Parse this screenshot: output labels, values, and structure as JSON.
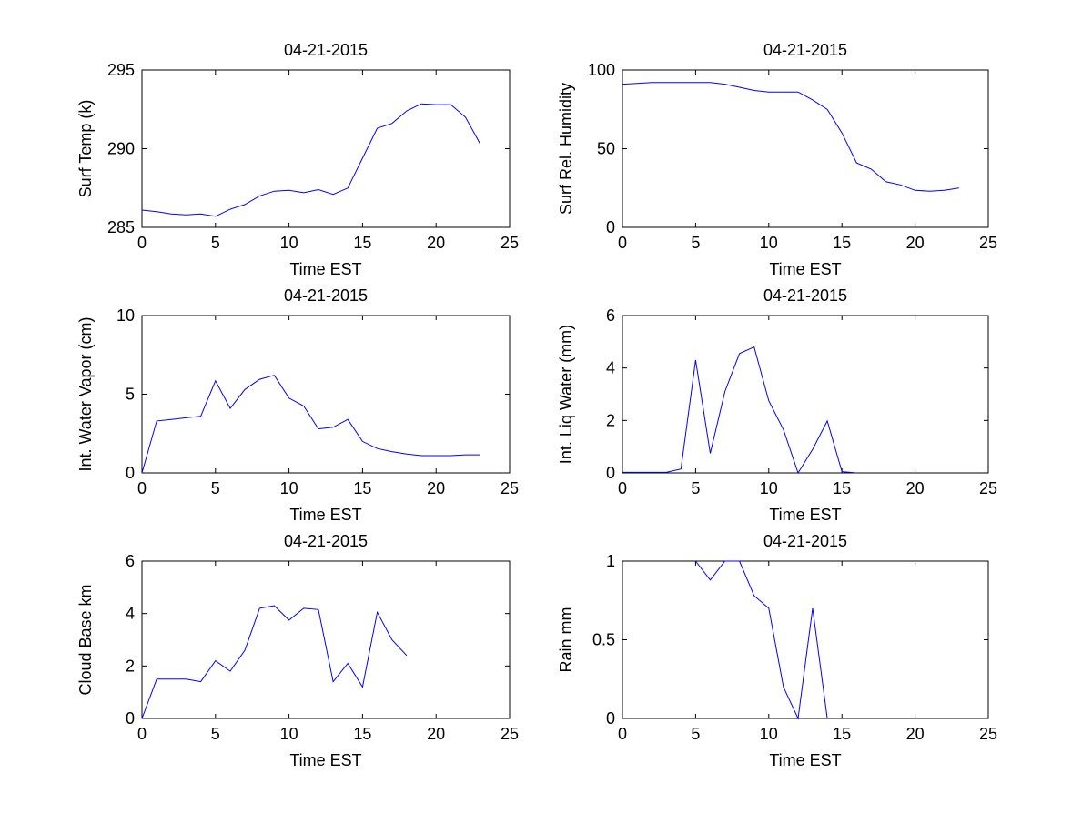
{
  "figure": {
    "line_color": "#0000ff",
    "axis_color": "#000000",
    "background": "#ffffff"
  },
  "chart_data": [
    {
      "type": "line",
      "title": "04-21-2015",
      "xlabel": "Time EST",
      "ylabel": "Surf Temp (k)",
      "xlim": [
        0,
        25
      ],
      "ylim": [
        285,
        295
      ],
      "xticks": [
        0,
        5,
        10,
        15,
        20,
        25
      ],
      "yticks": [
        285,
        290,
        295
      ],
      "grid": false,
      "x": [
        0,
        1,
        2,
        3,
        4,
        5,
        6,
        7,
        8,
        9,
        10,
        11,
        12,
        13,
        14,
        15,
        16,
        17,
        18,
        19,
        20,
        21,
        22,
        23
      ],
      "y": [
        286.1,
        286.0,
        285.85,
        285.8,
        285.85,
        285.7,
        286.15,
        286.45,
        287.0,
        287.3,
        287.35,
        287.2,
        287.4,
        287.1,
        287.5,
        289.4,
        291.3,
        291.6,
        292.4,
        292.85,
        292.8,
        292.8,
        292.0,
        290.3
      ]
    },
    {
      "type": "line",
      "title": "04-21-2015",
      "xlabel": "Time EST",
      "ylabel": "Surf Rel. Humidity",
      "xlim": [
        0,
        25
      ],
      "ylim": [
        0,
        100
      ],
      "xticks": [
        0,
        5,
        10,
        15,
        20,
        25
      ],
      "yticks": [
        0,
        50,
        100
      ],
      "grid": false,
      "x": [
        0,
        1,
        2,
        3,
        4,
        5,
        6,
        7,
        8,
        9,
        10,
        11,
        12,
        13,
        14,
        15,
        16,
        17,
        18,
        19,
        20,
        21,
        22,
        23
      ],
      "y": [
        91,
        91.5,
        92,
        92,
        92,
        92,
        92,
        91,
        89,
        87,
        86,
        86,
        86,
        81,
        75,
        60,
        41,
        37,
        29,
        27,
        23.5,
        23,
        23.5,
        25
      ]
    },
    {
      "type": "line",
      "title": "04-21-2015",
      "xlabel": "Time EST",
      "ylabel": "Int. Water Vapor (cm)",
      "xlim": [
        0,
        25
      ],
      "ylim": [
        0,
        10
      ],
      "xticks": [
        0,
        5,
        10,
        15,
        20,
        25
      ],
      "yticks": [
        0,
        5,
        10
      ],
      "grid": false,
      "x": [
        0,
        1,
        2,
        3,
        4,
        5,
        6,
        7,
        8,
        9,
        10,
        11,
        12,
        13,
        14,
        15,
        16,
        17,
        18,
        19,
        20,
        21,
        22,
        23
      ],
      "y": [
        0,
        3.3,
        3.4,
        3.5,
        3.6,
        5.85,
        4.1,
        5.3,
        5.95,
        6.2,
        4.75,
        4.25,
        2.8,
        2.9,
        3.4,
        2.0,
        1.55,
        1.35,
        1.2,
        1.1,
        1.1,
        1.1,
        1.15,
        1.15
      ]
    },
    {
      "type": "line",
      "title": "04-21-2015",
      "xlabel": "Time EST",
      "ylabel": "Int. Liq Water (mm)",
      "xlim": [
        0,
        25
      ],
      "ylim": [
        0,
        6
      ],
      "xticks": [
        0,
        5,
        10,
        15,
        20,
        25
      ],
      "yticks": [
        0,
        2,
        4,
        6
      ],
      "grid": false,
      "x": [
        0,
        1,
        2,
        3,
        4,
        5,
        6,
        7,
        8,
        9,
        10,
        11,
        12,
        13,
        14,
        15,
        16
      ],
      "y": [
        0.02,
        0.02,
        0.02,
        0.02,
        0.15,
        4.3,
        0.75,
        3.1,
        4.55,
        4.8,
        2.75,
        1.65,
        0.0,
        0.9,
        1.98,
        0.05,
        0.0
      ]
    },
    {
      "type": "line",
      "title": "04-21-2015",
      "xlabel": "Time EST",
      "ylabel": "Cloud Base km",
      "xlim": [
        0,
        25
      ],
      "ylim": [
        0,
        6
      ],
      "xticks": [
        0,
        5,
        10,
        15,
        20,
        25
      ],
      "yticks": [
        0,
        2,
        4,
        6
      ],
      "grid": false,
      "x": [
        0,
        1,
        2,
        3,
        4,
        5,
        6,
        7,
        8,
        9,
        10,
        11,
        12,
        13,
        14,
        15,
        16,
        17,
        18
      ],
      "y": [
        0,
        1.5,
        1.5,
        1.5,
        1.4,
        2.2,
        1.8,
        2.6,
        4.2,
        4.3,
        3.75,
        4.2,
        4.15,
        1.4,
        2.1,
        1.2,
        4.05,
        3.0,
        2.4
      ]
    },
    {
      "type": "line",
      "title": "04-21-2015",
      "xlabel": "Time EST",
      "ylabel": "Rain mm",
      "xlim": [
        0,
        25
      ],
      "ylim": [
        0,
        1
      ],
      "xticks": [
        0,
        5,
        10,
        15,
        20,
        25
      ],
      "yticks": [
        0,
        0.5,
        1
      ],
      "grid": false,
      "x": [
        5,
        6,
        7,
        8,
        9,
        10,
        11,
        12,
        13,
        14
      ],
      "y": [
        1.0,
        0.88,
        1.0,
        1.0,
        0.78,
        0.7,
        0.2,
        0.0,
        0.7,
        0.0
      ]
    }
  ]
}
